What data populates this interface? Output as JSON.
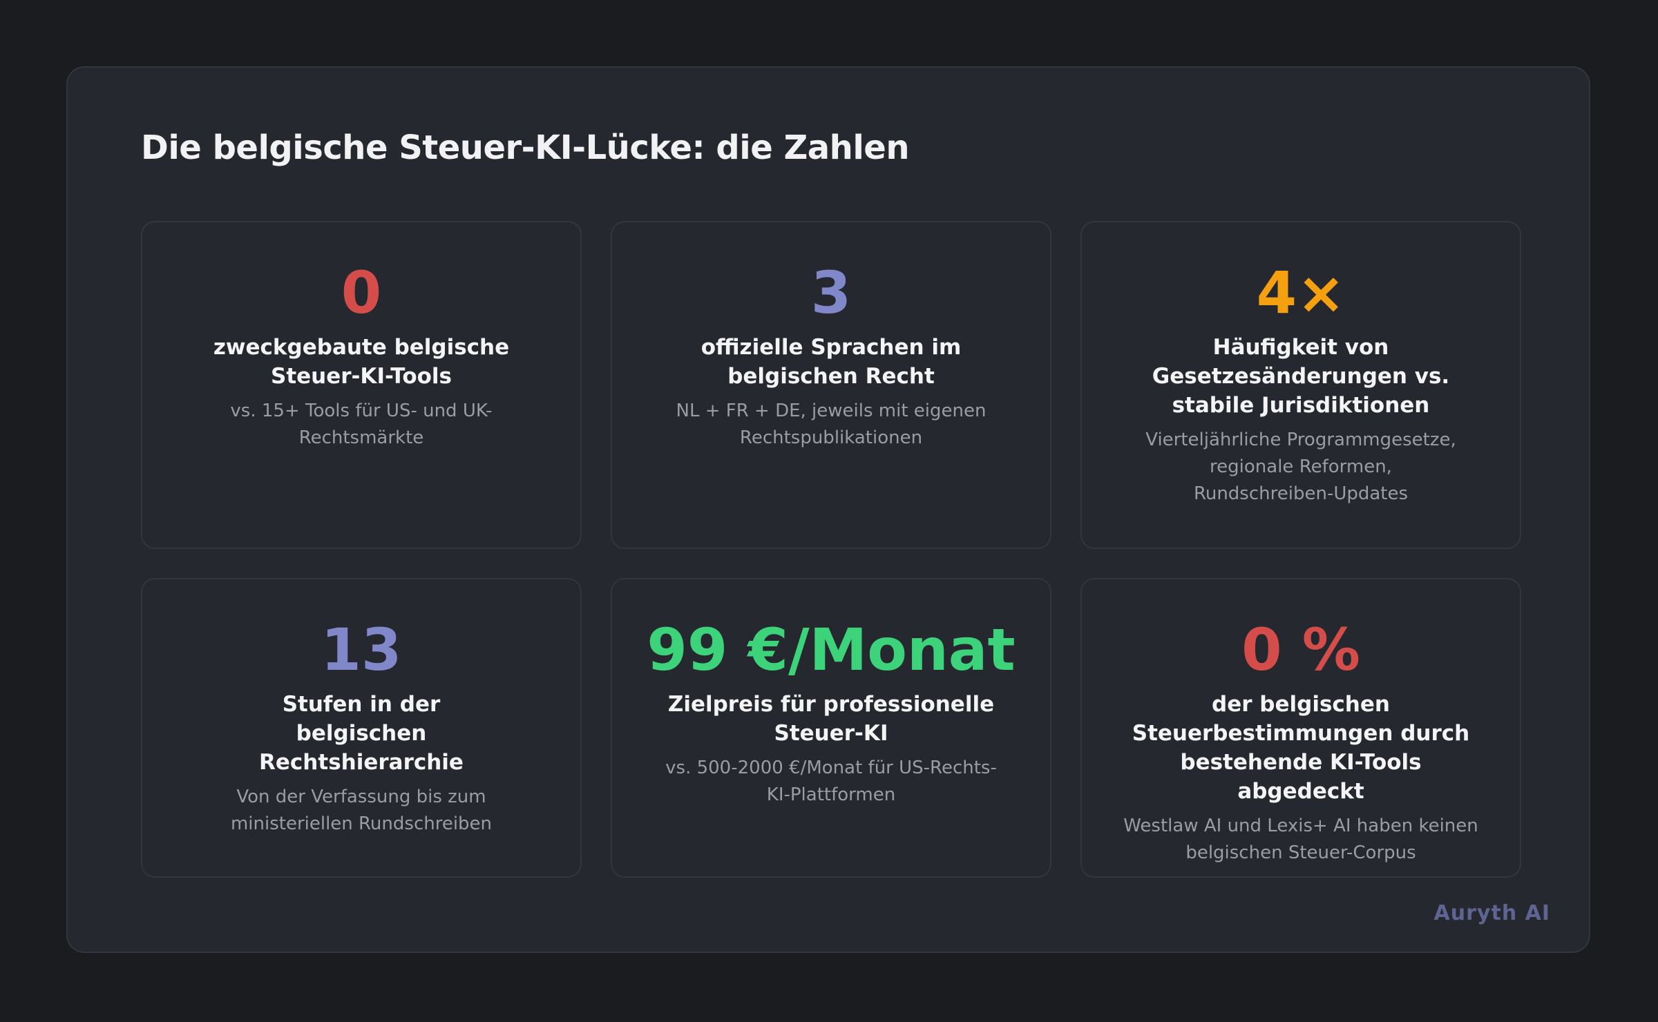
{
  "title": "Die belgische Steuer-KI-Lücke: die Zahlen",
  "brand": "Auryth AI",
  "colors": {
    "red": "#d44d4a",
    "indigo": "#8188c9",
    "orange": "#f5a00f",
    "green": "#3dd37a"
  },
  "stats": [
    {
      "value": "0",
      "color": "#d44d4a",
      "label": "zweckgebaute belgische Steuer-KI-Tools",
      "sub": "vs. 15+ Tools für US- und UK-Rechtsmärkte"
    },
    {
      "value": "3",
      "color": "#8188c9",
      "label": "offizielle Sprachen im belgischen Recht",
      "sub": "NL + FR + DE, jeweils mit eigenen Rechtspublikationen"
    },
    {
      "value": "4×",
      "color": "#f5a00f",
      "label": "Häufigkeit von Gesetzesänderungen vs. stabile Jurisdiktionen",
      "sub": "Vierteljährliche Programmgesetze, regionale Reformen, Rundschreiben-Updates"
    },
    {
      "value": "13",
      "color": "#8188c9",
      "label": "Stufen in der belgischen Rechtshierarchie",
      "sub": "Von der Verfassung bis zum ministeriellen Rundschreiben"
    },
    {
      "value": "99 €/Monat",
      "color": "#3dd37a",
      "label": "Zielpreis für professionelle Steuer-KI",
      "sub": "vs. 500-2000 €/Monat für US-Rechts-KI-Plattformen"
    },
    {
      "value": "0 %",
      "color": "#d44d4a",
      "label": "der belgischen Steuerbestimmungen durch bestehende KI-Tools abgedeckt",
      "sub": "Westlaw AI und Lexis+ AI haben keinen belgischen Steuer-Corpus"
    }
  ]
}
